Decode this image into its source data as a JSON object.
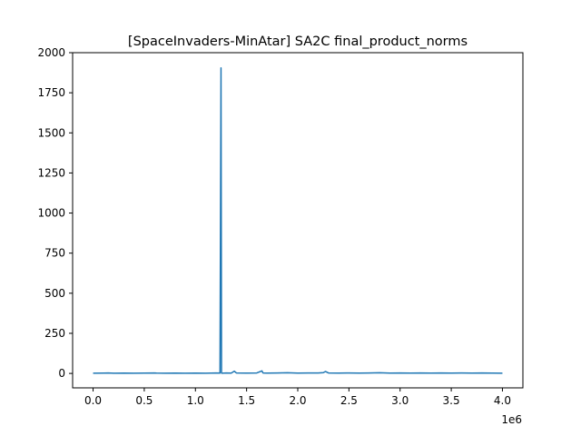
{
  "chart_data": {
    "type": "line",
    "title": "[SpaceInvaders-MinAtar] SA2C final_product_norms",
    "xlabel": "",
    "ylabel": "",
    "x_offset_label": "1e6",
    "xlim": [
      -0.2,
      4.2
    ],
    "ylim": [
      -90,
      2000
    ],
    "x_ticks": [
      0.0,
      0.5,
      1.0,
      1.5,
      2.0,
      2.5,
      3.0,
      3.5,
      4.0
    ],
    "x_tick_labels": [
      "0.0",
      "0.5",
      "1.0",
      "1.5",
      "2.0",
      "2.5",
      "3.0",
      "3.5",
      "4.0"
    ],
    "y_ticks": [
      0,
      250,
      500,
      750,
      1000,
      1250,
      1500,
      1750,
      2000
    ],
    "y_tick_labels": [
      "0",
      "250",
      "500",
      "750",
      "1000",
      "1250",
      "1500",
      "1750",
      "2000"
    ],
    "grid": false,
    "color": "#1f77b4",
    "series": [
      {
        "name": "",
        "x": [
          0.0,
          0.1,
          0.15,
          0.2,
          0.3,
          0.4,
          0.5,
          0.6,
          0.62,
          0.7,
          0.8,
          0.9,
          1.0,
          1.1,
          1.2,
          1.24,
          1.25,
          1.255,
          1.26,
          1.3,
          1.35,
          1.38,
          1.4,
          1.5,
          1.6,
          1.65,
          1.66,
          1.7,
          1.8,
          1.9,
          2.0,
          2.1,
          2.2,
          2.25,
          2.27,
          2.3,
          2.4,
          2.5,
          2.6,
          2.7,
          2.8,
          2.9,
          3.0,
          3.1,
          3.2,
          3.3,
          3.4,
          3.5,
          3.6,
          3.7,
          3.8,
          3.9,
          4.0
        ],
        "y": [
          1,
          2,
          3,
          1,
          2,
          1,
          2,
          3,
          2,
          1,
          2,
          1,
          2,
          1,
          3,
          2,
          1905,
          2,
          1,
          3,
          2,
          14,
          3,
          2,
          3,
          16,
          3,
          2,
          3,
          4,
          2,
          3,
          3,
          5,
          12,
          3,
          2,
          3,
          2,
          3,
          4,
          2,
          3,
          2,
          3,
          2,
          3,
          2,
          3,
          2,
          3,
          2,
          1
        ]
      }
    ]
  }
}
